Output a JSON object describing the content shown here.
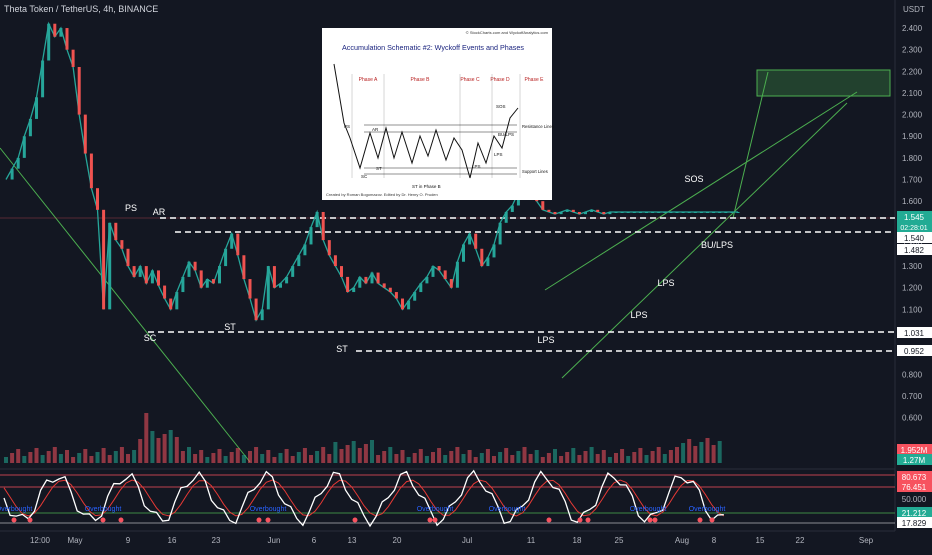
{
  "header": {
    "title": "Theta Token / TetherUS, 4h, BINANCE"
  },
  "chart_data": {
    "type": "line",
    "title": "Theta Token / TetherUS, 4h, BINANCE",
    "y_axis_unit": "USDT",
    "y_ticks": [
      "2.400",
      "2.300",
      "2.200",
      "2.100",
      "2.000",
      "1.900",
      "1.800",
      "1.700",
      "1.600",
      "1.500",
      "1.400",
      "1.300",
      "1.200",
      "1.100",
      "1.000",
      "0.900",
      "0.800",
      "0.700",
      "0.600"
    ],
    "x_ticks": [
      "12:00",
      "May",
      "9",
      "16",
      "23",
      "Jun",
      "6",
      "13",
      "20",
      "Jul",
      "11",
      "18",
      "25",
      "Aug",
      "8",
      "15",
      "22",
      "Sep"
    ],
    "series": [
      {
        "name": "",
        "color": "#ffffff",
        "x_days": [
          0,
          1,
          2,
          3,
          4,
          5,
          6,
          7,
          8,
          9,
          10,
          11,
          12,
          13,
          14,
          15,
          16,
          17,
          18,
          19,
          20,
          21,
          22,
          23,
          24,
          25,
          26,
          27,
          28,
          29,
          30,
          31,
          32,
          33,
          34,
          35,
          36,
          37,
          38,
          39,
          40,
          41,
          42,
          43,
          44,
          45,
          46,
          47,
          48,
          49,
          50,
          51,
          52,
          53,
          54,
          55,
          56,
          57,
          58,
          59,
          60,
          61,
          62,
          63,
          64,
          65,
          66,
          67,
          68,
          69,
          70,
          71,
          72,
          73,
          74,
          75,
          76,
          77,
          78,
          79,
          80,
          81,
          82,
          83,
          84,
          85,
          86,
          87,
          88,
          89,
          90,
          91,
          92,
          93,
          94,
          95,
          96,
          97,
          98,
          99,
          100,
          101,
          102,
          103,
          104,
          105,
          106,
          107,
          108,
          109,
          110,
          111,
          112,
          113,
          114,
          115,
          116,
          117,
          118,
          119,
          120
        ],
        "close": [
          1.7,
          1.75,
          1.8,
          1.9,
          1.98,
          2.08,
          2.25,
          2.42,
          2.36,
          2.4,
          2.3,
          2.22,
          2.0,
          1.82,
          1.66,
          1.56,
          1.1,
          1.5,
          1.42,
          1.38,
          1.3,
          1.25,
          1.3,
          1.22,
          1.28,
          1.21,
          1.15,
          1.1,
          1.18,
          1.25,
          1.32,
          1.28,
          1.2,
          1.24,
          1.22,
          1.3,
          1.38,
          1.45,
          1.35,
          1.24,
          1.15,
          1.05,
          1.1,
          1.3,
          1.2,
          1.22,
          1.25,
          1.3,
          1.35,
          1.4,
          1.48,
          1.55,
          1.42,
          1.35,
          1.3,
          1.25,
          1.18,
          1.2,
          1.25,
          1.22,
          1.27,
          1.22,
          1.2,
          1.18,
          1.15,
          1.1,
          1.14,
          1.18,
          1.22,
          1.25,
          1.3,
          1.28,
          1.24,
          1.2,
          1.32,
          1.4,
          1.45,
          1.38,
          1.3,
          1.34,
          1.4,
          1.5,
          1.55,
          1.58,
          1.64,
          1.7,
          1.65,
          1.6,
          1.56,
          1.55,
          1.54,
          1.55,
          1.56,
          1.55,
          1.54,
          1.55,
          1.56,
          1.55,
          1.54,
          1.55,
          1.55,
          1.55,
          1.55,
          1.55,
          1.55,
          1.55,
          1.55,
          1.55,
          1.55,
          1.55,
          1.55,
          1.55,
          1.55,
          1.55,
          1.55,
          1.55,
          1.55,
          1.55,
          1.55,
          1.55,
          1.55
        ]
      }
    ],
    "price_labels": [
      {
        "value": "1.545",
        "time": "02:28:01",
        "bg": "#22ab94"
      },
      {
        "value": "1.540",
        "bg": "#ffffff"
      },
      {
        "value": "1.482",
        "bg": "#ffffff"
      },
      {
        "value": "1.031",
        "bg": "#ffffff"
      },
      {
        "value": "0.952",
        "bg": "#ffffff"
      }
    ],
    "volume_labels": [
      {
        "value": "1.952M",
        "bg": "#f7525f"
      },
      {
        "value": "1.27M",
        "bg": "#22ab94"
      }
    ],
    "oscillator_labels": [
      {
        "value": "80.673",
        "bg": "#f7525f"
      },
      {
        "value": "76.451",
        "bg": "#f7525f"
      },
      {
        "value": "50.000",
        "bg": ""
      },
      {
        "value": "21.212",
        "bg": "#22ab94"
      },
      {
        "value": "17.829",
        "bg": "#ffffff"
      }
    ],
    "annotations": [
      "PS",
      "AR",
      "SC",
      "ST",
      "ST",
      "LPS",
      "LPS",
      "LPS",
      "SOS",
      "BU/LPS"
    ],
    "oscillator_tags": [
      "Overbought",
      "Overbought",
      "Overbought",
      "Overbought",
      "Overbought",
      "Overbought",
      "Overbought",
      "Overbought"
    ],
    "inset": {
      "title": "Accumulation Schematic #2: Wyckoff Events and Phases",
      "credit_top": "© StockCharts.com and WyckoffAnalytics.com",
      "credit_bottom": "Created by Roman Bogomazov. Edited by Dr. Henry O. Pruden",
      "phases": [
        "Phase A",
        "Phase B",
        "Phase C",
        "Phase D",
        "Phase E"
      ],
      "labels": [
        "PS",
        "AR",
        "SC",
        "ST",
        "ST in Phase B",
        "LPS",
        "LPS",
        "SOS",
        "BU/LPS"
      ],
      "resistance_label": "Resistance Lines",
      "support_label": "Support Lines"
    }
  }
}
